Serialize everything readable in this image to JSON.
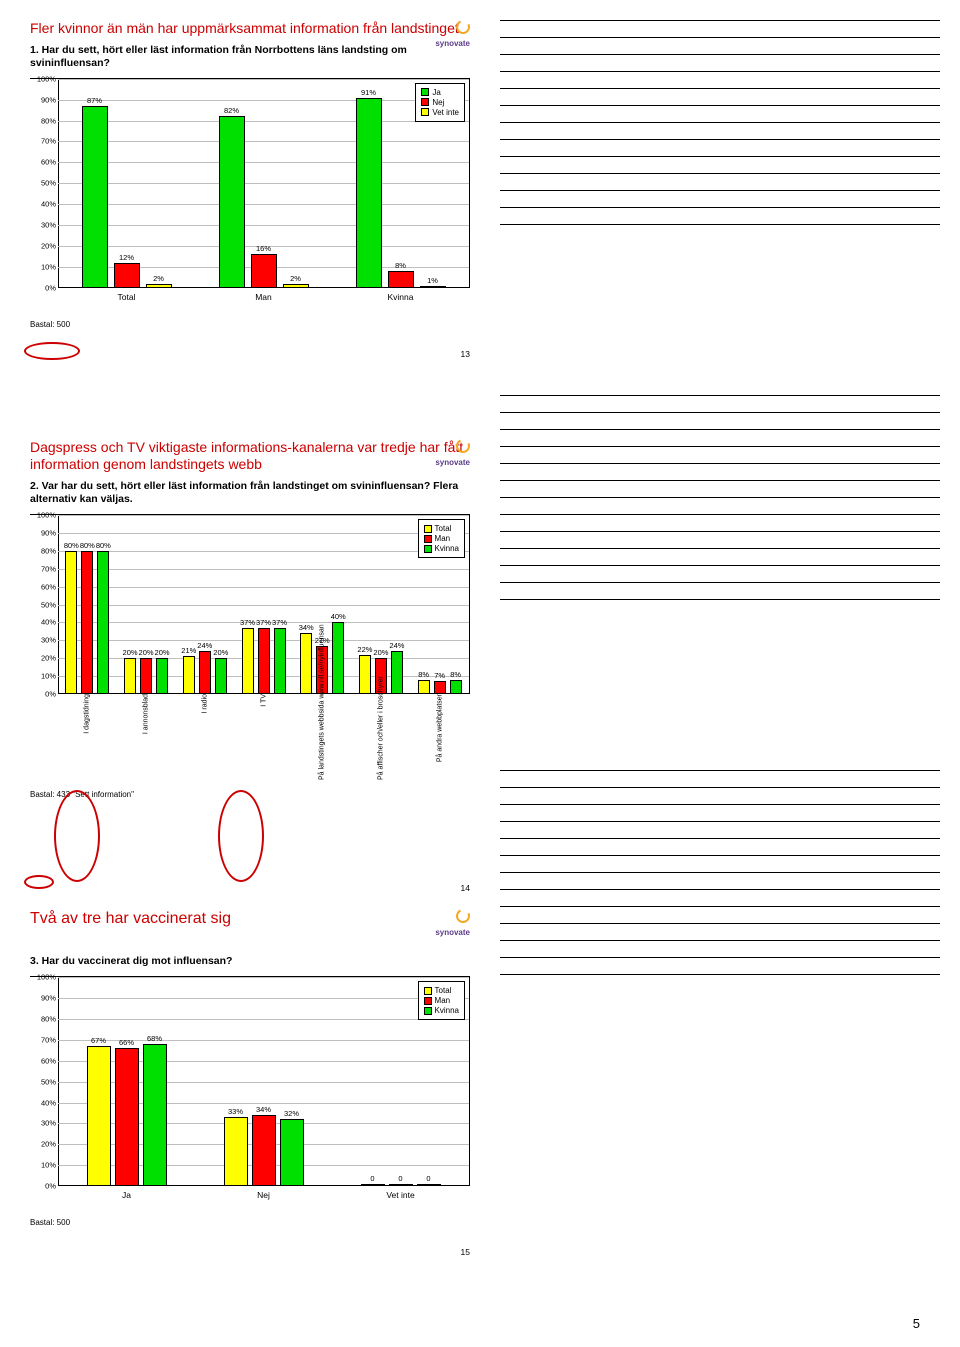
{
  "page_number": "5",
  "logo_brand": "synovate",
  "colors": {
    "green": "#00e000",
    "red": "#ff0000",
    "yellow": "#ffff00",
    "grid": "#bfbfbf",
    "title": "#cc0000"
  },
  "chart1": {
    "title": "Fler kvinnor än män har uppmärksammat information från landstinget",
    "question": "1. Har du sett, hört eller läst information från Norrbottens läns landsting om svininfluensan?",
    "y_ticks": [
      "0%",
      "10%",
      "20%",
      "30%",
      "40%",
      "50%",
      "60%",
      "70%",
      "80%",
      "90%",
      "100%"
    ],
    "legend": [
      {
        "label": "Ja",
        "color": "#00e000"
      },
      {
        "label": "Nej",
        "color": "#ff0000"
      },
      {
        "label": "Vet inte",
        "color": "#ffff00"
      }
    ],
    "groups": [
      {
        "label": "Total",
        "bars": [
          {
            "v": 87,
            "c": "#00e000",
            "t": "87%"
          },
          {
            "v": 12,
            "c": "#ff0000",
            "t": "12%"
          },
          {
            "v": 2,
            "c": "#ffff00",
            "t": "2%"
          }
        ]
      },
      {
        "label": "Man",
        "bars": [
          {
            "v": 82,
            "c": "#00e000",
            "t": "82%"
          },
          {
            "v": 16,
            "c": "#ff0000",
            "t": "16%"
          },
          {
            "v": 2,
            "c": "#ffff00",
            "t": "2%"
          }
        ]
      },
      {
        "label": "Kvinna",
        "bars": [
          {
            "v": 91,
            "c": "#00e000",
            "t": "91%"
          },
          {
            "v": 8,
            "c": "#ff0000",
            "t": "8%"
          },
          {
            "v": 1,
            "c": "#ffff00",
            "t": "1%"
          }
        ]
      }
    ],
    "bastal": "Bastal: 500",
    "slide_num": "13"
  },
  "chart2": {
    "title": "Dagspress och TV viktigaste informations-kanalerna var tredje har fått information genom landstingets webb",
    "question": "2. Var har du sett, hört eller läst information från landstinget om svininfluensan? Flera alternativ kan väljas.",
    "y_ticks": [
      "0%",
      "10%",
      "20%",
      "30%",
      "40%",
      "50%",
      "60%",
      "70%",
      "80%",
      "90%",
      "100%"
    ],
    "legend": [
      {
        "label": "Total",
        "color": "#ffff00"
      },
      {
        "label": "Man",
        "color": "#ff0000"
      },
      {
        "label": "Kvinna",
        "color": "#00e000"
      }
    ],
    "groups": [
      {
        "label": "I dagstidning",
        "bars": [
          {
            "v": 80,
            "c": "#ffff00",
            "t": "80%"
          },
          {
            "v": 80,
            "c": "#ff0000",
            "t": "80%"
          },
          {
            "v": 80,
            "c": "#00e000",
            "t": "80%"
          }
        ]
      },
      {
        "label": "I annonsblad",
        "bars": [
          {
            "v": 20,
            "c": "#ffff00",
            "t": "20%"
          },
          {
            "v": 20,
            "c": "#ff0000",
            "t": "20%"
          },
          {
            "v": 20,
            "c": "#00e000",
            "t": "20%"
          }
        ]
      },
      {
        "label": "I radio",
        "bars": [
          {
            "v": 21,
            "c": "#ffff00",
            "t": "21%"
          },
          {
            "v": 24,
            "c": "#ff0000",
            "t": "24%"
          },
          {
            "v": 20,
            "c": "#00e000",
            "t": "20%"
          }
        ]
      },
      {
        "label": "I TV",
        "bars": [
          {
            "v": 37,
            "c": "#ffff00",
            "t": "37%"
          },
          {
            "v": 37,
            "c": "#ff0000",
            "t": "37%"
          },
          {
            "v": 37,
            "c": "#00e000",
            "t": "37%"
          }
        ]
      },
      {
        "label": "På landstingets webbsida www.nll.se/nyinfluensan",
        "bars": [
          {
            "v": 34,
            "c": "#ffff00",
            "t": "34%"
          },
          {
            "v": 27,
            "c": "#ff0000",
            "t": "27%"
          },
          {
            "v": 40,
            "c": "#00e000",
            "t": "40%"
          }
        ]
      },
      {
        "label": "På affischer och/eller i broschyrer",
        "bars": [
          {
            "v": 22,
            "c": "#ffff00",
            "t": "22%"
          },
          {
            "v": 20,
            "c": "#ff0000",
            "t": "20%"
          },
          {
            "v": 24,
            "c": "#00e000",
            "t": "24%"
          }
        ]
      },
      {
        "label": "På andra webbplatser",
        "bars": [
          {
            "v": 8,
            "c": "#ffff00",
            "t": "8%"
          },
          {
            "v": 7,
            "c": "#ff0000",
            "t": "7%"
          },
          {
            "v": 8,
            "c": "#00e000",
            "t": "8%"
          }
        ]
      }
    ],
    "bastal": "Bastal: 433 \"Sett information\"",
    "slide_num": "14"
  },
  "chart3": {
    "title": "Två av tre har vaccinerat sig",
    "question": "3. Har du vaccinerat dig mot influensan?",
    "y_ticks": [
      "0%",
      "10%",
      "20%",
      "30%",
      "40%",
      "50%",
      "60%",
      "70%",
      "80%",
      "90%",
      "100%"
    ],
    "legend": [
      {
        "label": "Total",
        "color": "#ffff00"
      },
      {
        "label": "Man",
        "color": "#ff0000"
      },
      {
        "label": "Kvinna",
        "color": "#00e000"
      }
    ],
    "groups": [
      {
        "label": "Ja",
        "bars": [
          {
            "v": 67,
            "c": "#ffff00",
            "t": "67%"
          },
          {
            "v": 66,
            "c": "#ff0000",
            "t": "66%"
          },
          {
            "v": 68,
            "c": "#00e000",
            "t": "68%"
          }
        ]
      },
      {
        "label": "Nej",
        "bars": [
          {
            "v": 33,
            "c": "#ffff00",
            "t": "33%"
          },
          {
            "v": 34,
            "c": "#ff0000",
            "t": "34%"
          },
          {
            "v": 32,
            "c": "#00e000",
            "t": "32%"
          }
        ]
      },
      {
        "label": "Vet inte",
        "bars": [
          {
            "v": 0,
            "c": "#ffff00",
            "t": "0"
          },
          {
            "v": 0,
            "c": "#ff0000",
            "t": "0"
          },
          {
            "v": 0,
            "c": "#00e000",
            "t": "0"
          }
        ]
      }
    ],
    "bastal": "Bastal: 500",
    "slide_num": "15"
  }
}
